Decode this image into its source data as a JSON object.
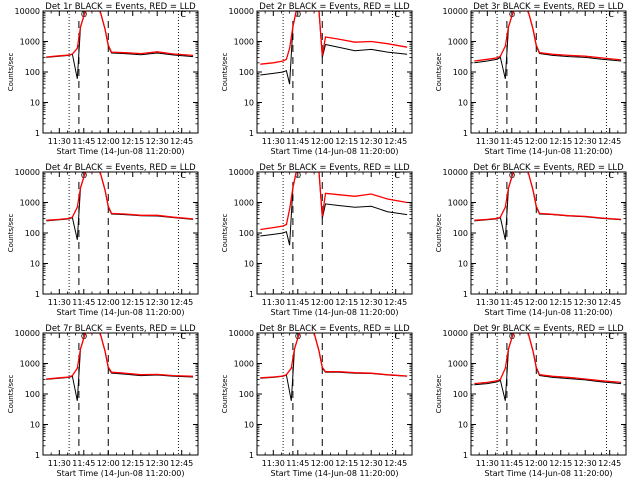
{
  "chart_data": [
    {
      "title": "Det 1r BLACK = Events, RED = LLD",
      "xlabel": "Start Time (14-Jun-08 11:20:00)",
      "ylabel": "Counts/sec",
      "type": "line",
      "yscale": "log",
      "ylim": [
        1,
        10000
      ],
      "xlim": [
        "11:20",
        "12:55"
      ],
      "xticks": [
        "11:30",
        "11:45",
        "12:00",
        "12:15",
        "12:30",
        "12:45"
      ],
      "yticks": [
        "1",
        "10",
        "100",
        "1000",
        "10000"
      ],
      "markers": [
        "O",
        "C"
      ],
      "series": [
        {
          "color": "#000000",
          "x": [
            "11:22",
            "11:30",
            "11:36",
            "11:38",
            "11:41",
            "11:43",
            "11:46",
            "11:53",
            "11:55",
            "11:58",
            "12:00",
            "12:02",
            "12:10",
            "12:20",
            "12:30",
            "12:40",
            "12:52"
          ],
          "values": [
            300,
            330,
            350,
            380,
            60,
            3000,
            10000,
            10000,
            10000,
            2500,
            700,
            420,
            400,
            370,
            420,
            360,
            320
          ]
        },
        {
          "color": "#ff0000",
          "x": [
            "11:22",
            "11:30",
            "11:36",
            "11:38",
            "11:41",
            "11:43",
            "11:46",
            "11:53",
            "11:55",
            "11:58",
            "12:00",
            "12:02",
            "12:10",
            "12:20",
            "12:30",
            "12:40",
            "12:52"
          ],
          "values": [
            310,
            340,
            360,
            390,
            600,
            3000,
            10000,
            10000,
            10000,
            2600,
            750,
            450,
            430,
            400,
            460,
            390,
            350
          ]
        }
      ]
    },
    {
      "title": "Det 2r BLACK = Events, RED = LLD",
      "xlabel": "Start Time (14-Jun-08 11:20:00)",
      "ylabel": "Counts/sec",
      "type": "line",
      "yscale": "log",
      "ylim": [
        1,
        10000
      ],
      "xlim": [
        "11:20",
        "12:55"
      ],
      "xticks": [
        "11:30",
        "11:45",
        "12:00",
        "12:15",
        "12:30",
        "12:45"
      ],
      "yticks": [
        "1",
        "10",
        "100",
        "1000",
        "10000"
      ],
      "markers": [
        "O",
        "C"
      ],
      "series": [
        {
          "color": "#000000",
          "x": [
            "11:22",
            "11:30",
            "11:36",
            "11:38",
            "11:40",
            "11:42",
            "11:44",
            "11:55",
            "11:58",
            "12:00",
            "12:02",
            "12:10",
            "12:20",
            "12:30",
            "12:40",
            "12:52"
          ],
          "values": [
            80,
            90,
            100,
            110,
            40,
            3000,
            10000,
            10000,
            10000,
            300,
            800,
            650,
            500,
            550,
            450,
            380
          ]
        },
        {
          "color": "#ff0000",
          "x": [
            "11:22",
            "11:30",
            "11:36",
            "11:38",
            "11:40",
            "11:42",
            "11:44",
            "11:55",
            "11:58",
            "12:00",
            "12:02",
            "12:10",
            "12:20",
            "12:30",
            "12:40",
            "12:52"
          ],
          "values": [
            180,
            200,
            230,
            260,
            600,
            3000,
            10000,
            10000,
            10000,
            350,
            1400,
            1200,
            950,
            1000,
            850,
            650
          ]
        }
      ]
    },
    {
      "title": "Det 3r BLACK = Events, RED = LLD",
      "xlabel": "Start Time (14-Jun-08 11:20:00)",
      "ylabel": "Counts/sec",
      "type": "line",
      "yscale": "log",
      "ylim": [
        1,
        10000
      ],
      "xlim": [
        "11:20",
        "12:55"
      ],
      "xticks": [
        "11:30",
        "11:45",
        "12:00",
        "12:15",
        "12:30",
        "12:45"
      ],
      "yticks": [
        "1",
        "10",
        "100",
        "1000",
        "10000"
      ],
      "markers": [
        "O",
        "C"
      ],
      "series": [
        {
          "color": "#000000",
          "x": [
            "11:22",
            "11:30",
            "11:36",
            "11:38",
            "11:41",
            "11:43",
            "11:46",
            "11:53",
            "11:55",
            "11:58",
            "12:00",
            "12:02",
            "12:10",
            "12:20",
            "12:30",
            "12:40",
            "12:52"
          ],
          "values": [
            200,
            230,
            260,
            300,
            60,
            3000,
            10000,
            10000,
            10000,
            2500,
            700,
            400,
            350,
            320,
            300,
            260,
            230
          ]
        },
        {
          "color": "#ff0000",
          "x": [
            "11:22",
            "11:30",
            "11:36",
            "11:38",
            "11:41",
            "11:43",
            "11:46",
            "11:53",
            "11:55",
            "11:58",
            "12:00",
            "12:02",
            "12:10",
            "12:20",
            "12:30",
            "12:40",
            "12:52"
          ],
          "values": [
            230,
            260,
            290,
            330,
            700,
            3000,
            10000,
            10000,
            10000,
            2600,
            750,
            430,
            380,
            350,
            330,
            290,
            250
          ]
        }
      ]
    },
    {
      "title": "Det 4r BLACK = Events, RED = LLD",
      "xlabel": "Start Time (14-Jun-08 11:20:00)",
      "ylabel": "Counts/sec",
      "type": "line",
      "yscale": "log",
      "ylim": [
        1,
        10000
      ],
      "xlim": [
        "11:20",
        "12:55"
      ],
      "xticks": [
        "11:30",
        "11:45",
        "12:00",
        "12:15",
        "12:30",
        "12:45"
      ],
      "yticks": [
        "1",
        "10",
        "100",
        "1000",
        "10000"
      ],
      "markers": [
        "O",
        "C"
      ],
      "series": [
        {
          "color": "#000000",
          "x": [
            "11:22",
            "11:30",
            "11:36",
            "11:38",
            "11:41",
            "11:43",
            "11:46",
            "11:53",
            "11:55",
            "11:58",
            "12:00",
            "12:02",
            "12:10",
            "12:20",
            "12:30",
            "12:40",
            "12:52"
          ],
          "values": [
            250,
            270,
            290,
            320,
            60,
            3000,
            10000,
            10000,
            10000,
            2500,
            700,
            420,
            400,
            370,
            360,
            320,
            280
          ]
        },
        {
          "color": "#ff0000",
          "x": [
            "11:22",
            "11:30",
            "11:36",
            "11:38",
            "11:41",
            "11:43",
            "11:46",
            "11:53",
            "11:55",
            "11:58",
            "12:00",
            "12:02",
            "12:10",
            "12:20",
            "12:30",
            "12:40",
            "12:52"
          ],
          "values": [
            260,
            280,
            300,
            330,
            700,
            3000,
            10000,
            10000,
            10000,
            2600,
            750,
            440,
            420,
            380,
            380,
            330,
            290
          ]
        }
      ]
    },
    {
      "title": "Det 5r BLACK = Events, RED = LLD",
      "xlabel": "Start Time (14-Jun-08 11:20:00)",
      "ylabel": "Counts/sec",
      "type": "line",
      "yscale": "log",
      "ylim": [
        1,
        10000
      ],
      "xlim": [
        "11:20",
        "12:55"
      ],
      "xticks": [
        "11:30",
        "11:45",
        "12:00",
        "12:15",
        "12:30",
        "12:45"
      ],
      "yticks": [
        "1",
        "10",
        "100",
        "1000",
        "10000"
      ],
      "markers": [
        "O",
        "C"
      ],
      "series": [
        {
          "color": "#000000",
          "x": [
            "11:22",
            "11:30",
            "11:36",
            "11:38",
            "11:40",
            "11:42",
            "11:44",
            "11:55",
            "11:58",
            "12:00",
            "12:02",
            "12:10",
            "12:20",
            "12:30",
            "12:40",
            "12:52"
          ],
          "values": [
            80,
            90,
            100,
            110,
            40,
            3000,
            10000,
            10000,
            10000,
            300,
            900,
            800,
            700,
            750,
            500,
            400
          ]
        },
        {
          "color": "#ff0000",
          "x": [
            "11:22",
            "11:30",
            "11:36",
            "11:38",
            "11:40",
            "11:42",
            "11:44",
            "11:55",
            "11:58",
            "12:00",
            "12:02",
            "12:10",
            "12:20",
            "12:30",
            "12:40",
            "12:52"
          ],
          "values": [
            130,
            150,
            170,
            190,
            600,
            3000,
            10000,
            10000,
            10000,
            350,
            2000,
            1800,
            1600,
            1900,
            1300,
            1000
          ]
        }
      ]
    },
    {
      "title": "Det 6r BLACK = Events, RED = LLD",
      "xlabel": "Start Time (14-Jun-08 11:20:00)",
      "ylabel": "Counts/sec",
      "type": "line",
      "yscale": "log",
      "ylim": [
        1,
        10000
      ],
      "xlim": [
        "11:20",
        "12:55"
      ],
      "xticks": [
        "11:30",
        "11:45",
        "12:00",
        "12:15",
        "12:30",
        "12:45"
      ],
      "yticks": [
        "1",
        "10",
        "100",
        "1000",
        "10000"
      ],
      "markers": [
        "O",
        "C"
      ],
      "series": [
        {
          "color": "#000000",
          "x": [
            "11:22",
            "11:30",
            "11:36",
            "11:38",
            "11:41",
            "11:43",
            "11:46",
            "11:53",
            "11:55",
            "11:58",
            "12:00",
            "12:02",
            "12:10",
            "12:20",
            "12:30",
            "12:40",
            "12:52"
          ],
          "values": [
            250,
            270,
            290,
            320,
            60,
            3000,
            10000,
            10000,
            10000,
            2500,
            700,
            420,
            400,
            360,
            340,
            300,
            270
          ]
        },
        {
          "color": "#ff0000",
          "x": [
            "11:22",
            "11:30",
            "11:36",
            "11:38",
            "11:41",
            "11:43",
            "11:46",
            "11:53",
            "11:55",
            "11:58",
            "12:00",
            "12:02",
            "12:10",
            "12:20",
            "12:30",
            "12:40",
            "12:52"
          ],
          "values": [
            260,
            280,
            300,
            330,
            700,
            3000,
            10000,
            10000,
            10000,
            2600,
            750,
            440,
            410,
            370,
            350,
            310,
            280
          ]
        }
      ]
    },
    {
      "title": "Det 7r BLACK = Events, RED = LLD",
      "xlabel": "Start Time (14-Jun-08 11:20:00)",
      "ylabel": "Counts/sec",
      "type": "line",
      "yscale": "log",
      "ylim": [
        1,
        10000
      ],
      "xlim": [
        "11:20",
        "12:55"
      ],
      "xticks": [
        "11:30",
        "11:45",
        "12:00",
        "12:15",
        "12:30",
        "12:45"
      ],
      "yticks": [
        "1",
        "10",
        "100",
        "1000",
        "10000"
      ],
      "markers": [
        "O",
        "C"
      ],
      "series": [
        {
          "color": "#000000",
          "x": [
            "11:22",
            "11:30",
            "11:36",
            "11:38",
            "11:41",
            "11:43",
            "11:46",
            "11:53",
            "11:55",
            "11:58",
            "12:00",
            "12:02",
            "12:10",
            "12:20",
            "12:30",
            "12:40",
            "12:52"
          ],
          "values": [
            300,
            330,
            350,
            380,
            60,
            3000,
            10000,
            10000,
            10000,
            2500,
            700,
            480,
            450,
            400,
            420,
            380,
            360
          ]
        },
        {
          "color": "#ff0000",
          "x": [
            "11:22",
            "11:30",
            "11:36",
            "11:38",
            "11:41",
            "11:43",
            "11:46",
            "11:53",
            "11:55",
            "11:58",
            "12:00",
            "12:02",
            "12:10",
            "12:20",
            "12:30",
            "12:40",
            "12:52"
          ],
          "values": [
            310,
            340,
            360,
            400,
            700,
            3000,
            10000,
            10000,
            10000,
            2600,
            760,
            520,
            480,
            430,
            440,
            400,
            380
          ]
        }
      ]
    },
    {
      "title": "Det 8r BLACK = Events, RED = LLD",
      "xlabel": "Start Time (14-Jun-08 11:20:00)",
      "ylabel": "Counts/sec",
      "type": "line",
      "yscale": "log",
      "ylim": [
        1,
        10000
      ],
      "xlim": [
        "11:20",
        "12:55"
      ],
      "xticks": [
        "11:30",
        "11:45",
        "12:00",
        "12:15",
        "12:30",
        "12:45"
      ],
      "yticks": [
        "1",
        "10",
        "100",
        "1000",
        "10000"
      ],
      "markers": [
        "O",
        "C"
      ],
      "series": [
        {
          "color": "#000000",
          "x": [
            "11:22",
            "11:30",
            "11:36",
            "11:38",
            "11:41",
            "11:43",
            "11:46",
            "11:53",
            "11:55",
            "11:58",
            "12:00",
            "12:02",
            "12:10",
            "12:20",
            "12:30",
            "12:40",
            "12:52"
          ],
          "values": [
            330,
            350,
            380,
            420,
            60,
            3000,
            10000,
            10000,
            10000,
            2500,
            700,
            520,
            520,
            480,
            470,
            420,
            380
          ]
        },
        {
          "color": "#ff0000",
          "x": [
            "11:22",
            "11:30",
            "11:36",
            "11:38",
            "11:41",
            "11:43",
            "11:46",
            "11:53",
            "11:55",
            "11:58",
            "12:00",
            "12:02",
            "12:10",
            "12:20",
            "12:30",
            "12:40",
            "12:52"
          ],
          "values": [
            340,
            360,
            390,
            430,
            700,
            3000,
            10000,
            10000,
            10000,
            2600,
            750,
            540,
            540,
            500,
            480,
            430,
            390
          ]
        }
      ]
    },
    {
      "title": "Det 9r BLACK = Events, RED = LLD",
      "xlabel": "Start Time (14-Jun-08 11:20:00)",
      "ylabel": "Counts/sec",
      "type": "line",
      "yscale": "log",
      "ylim": [
        1,
        10000
      ],
      "xlim": [
        "11:20",
        "12:55"
      ],
      "xticks": [
        "11:30",
        "11:45",
        "12:00",
        "12:15",
        "12:30",
        "12:45"
      ],
      "yticks": [
        "1",
        "10",
        "100",
        "1000",
        "10000"
      ],
      "markers": [
        "O",
        "C"
      ],
      "series": [
        {
          "color": "#000000",
          "x": [
            "11:22",
            "11:30",
            "11:36",
            "11:38",
            "11:41",
            "11:43",
            "11:46",
            "11:53",
            "11:55",
            "11:58",
            "12:00",
            "12:02",
            "12:10",
            "12:20",
            "12:30",
            "12:40",
            "12:52"
          ],
          "values": [
            200,
            220,
            250,
            280,
            60,
            3000,
            10000,
            10000,
            10000,
            2500,
            700,
            400,
            350,
            320,
            290,
            250,
            220
          ]
        },
        {
          "color": "#ff0000",
          "x": [
            "11:22",
            "11:30",
            "11:36",
            "11:38",
            "11:41",
            "11:43",
            "11:46",
            "11:53",
            "11:55",
            "11:58",
            "12:00",
            "12:02",
            "12:10",
            "12:20",
            "12:30",
            "12:40",
            "12:52"
          ],
          "values": [
            220,
            240,
            270,
            300,
            700,
            3000,
            10000,
            10000,
            10000,
            2600,
            750,
            430,
            380,
            350,
            310,
            270,
            240
          ]
        }
      ]
    }
  ]
}
